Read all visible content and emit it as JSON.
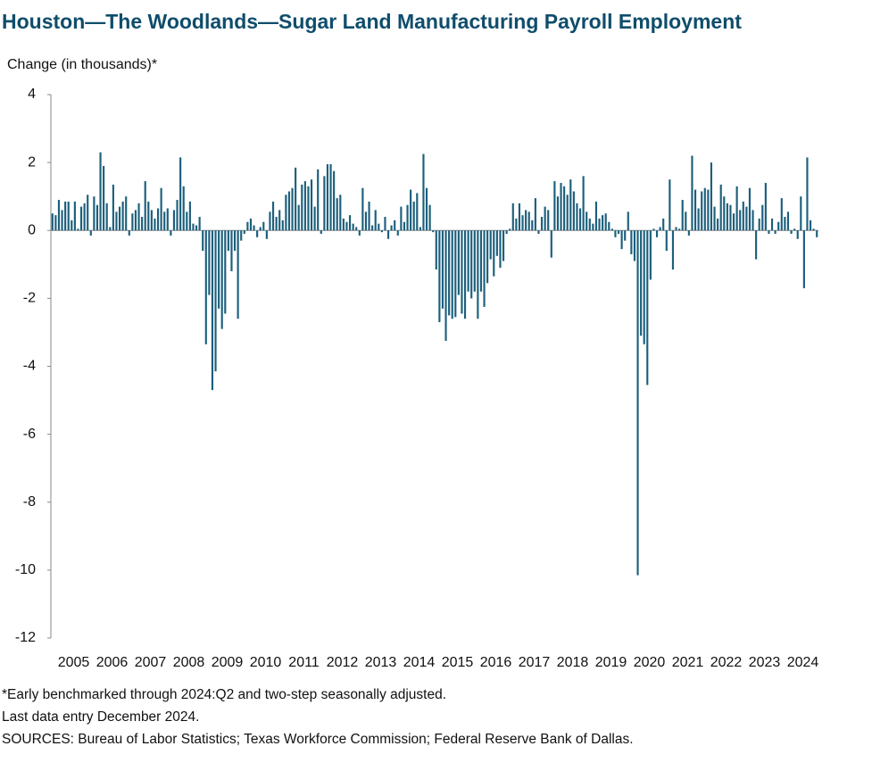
{
  "chart_data": {
    "type": "bar",
    "title": "Houston—The Woodlands—Sugar Land Manufacturing Payroll Employment",
    "y_axis_label": "Change (in thousands)*",
    "notes": [
      "*Early benchmarked through 2024:Q2  and two-step seasonally adjusted.",
      "Last data entry December 2024.",
      "SOURCES:  Bureau of Labor Statistics; Texas Workforce Commission;  Federal Reserve Bank of Dallas."
    ],
    "color": "#1c5f7c",
    "ylim": [
      -12,
      4
    ],
    "yticks": [
      4,
      2,
      0,
      -2,
      -4,
      -6,
      -8,
      -10,
      -12
    ],
    "grid": false,
    "categories": [
      null,
      null,
      null,
      null,
      null,
      null,
      "2005",
      null,
      null,
      null,
      null,
      null,
      null,
      null,
      null,
      null,
      null,
      null,
      "2006",
      null,
      null,
      null,
      null,
      null,
      null,
      null,
      null,
      null,
      null,
      null,
      "2007",
      null,
      null,
      null,
      null,
      null,
      null,
      null,
      null,
      null,
      null,
      null,
      "2008",
      null,
      null,
      null,
      null,
      null,
      null,
      null,
      null,
      null,
      null,
      null,
      "2009",
      null,
      null,
      null,
      null,
      null,
      null,
      null,
      null,
      null,
      null,
      null,
      "2010",
      null,
      null,
      null,
      null,
      null,
      null,
      null,
      null,
      null,
      null,
      null,
      "2011",
      null,
      null,
      null,
      null,
      null,
      null,
      null,
      null,
      null,
      null,
      null,
      "2012",
      null,
      null,
      null,
      null,
      null,
      null,
      null,
      null,
      null,
      null,
      null,
      "2013",
      null,
      null,
      null,
      null,
      null,
      null,
      null,
      null,
      null,
      null,
      null,
      "2014",
      null,
      null,
      null,
      null,
      null,
      null,
      null,
      null,
      null,
      null,
      null,
      "2015",
      null,
      null,
      null,
      null,
      null,
      null,
      null,
      null,
      null,
      null,
      null,
      "2016",
      null,
      null,
      null,
      null,
      null,
      null,
      null,
      null,
      null,
      null,
      null,
      "2017",
      null,
      null,
      null,
      null,
      null,
      null,
      null,
      null,
      null,
      null,
      null,
      "2018",
      null,
      null,
      null,
      null,
      null,
      null,
      null,
      null,
      null,
      null,
      null,
      "2019",
      null,
      null,
      null,
      null,
      null,
      null,
      null,
      null,
      null,
      null,
      null,
      "2020",
      null,
      null,
      null,
      null,
      null,
      null,
      null,
      null,
      null,
      null,
      null,
      "2021",
      null,
      null,
      null,
      null,
      null,
      null,
      null,
      null,
      null,
      null,
      null,
      "2022",
      null,
      null,
      null,
      null,
      null,
      null,
      null,
      null,
      null,
      null,
      null,
      "2023",
      null,
      null,
      null,
      null,
      null,
      null,
      null,
      null,
      null,
      null,
      null,
      "2024",
      null,
      null,
      null,
      null,
      null
    ],
    "values": [
      0.5,
      0.45,
      0.9,
      0.6,
      0.85,
      0.85,
      0.3,
      0.85,
      0.05,
      0.7,
      0.8,
      1.05,
      -0.15,
      1.0,
      0.75,
      2.3,
      1.9,
      0.8,
      0.1,
      1.35,
      0.55,
      0.7,
      0.85,
      1.0,
      -0.15,
      0.5,
      0.6,
      0.8,
      0.4,
      1.45,
      0.85,
      0.6,
      0.35,
      0.65,
      1.25,
      0.55,
      0.65,
      -0.15,
      0.6,
      0.9,
      2.15,
      1.3,
      0.55,
      0.85,
      0.2,
      0.15,
      0.4,
      -0.6,
      -3.35,
      -1.9,
      -4.7,
      -4.15,
      -2.3,
      -2.9,
      -2.45,
      -0.6,
      -1.2,
      -0.6,
      -2.6,
      -0.3,
      -0.1,
      0.25,
      0.35,
      0.15,
      -0.2,
      0.1,
      0.25,
      -0.25,
      0.55,
      0.85,
      0.4,
      0.6,
      0.3,
      1.05,
      1.15,
      1.25,
      1.85,
      0.75,
      1.35,
      1.45,
      1.3,
      1.5,
      0.7,
      1.8,
      -0.1,
      1.6,
      1.95,
      1.95,
      1.75,
      0.95,
      1.05,
      0.35,
      0.25,
      0.45,
      0.2,
      0.1,
      -0.15,
      1.25,
      0.55,
      0.85,
      0.15,
      0.6,
      0.2,
      -0.05,
      0.4,
      -0.25,
      0.15,
      0.3,
      -0.15,
      0.7,
      0.25,
      0.75,
      1.2,
      0.85,
      1.1,
      0.1,
      2.25,
      1.25,
      0.75,
      -0.05,
      -1.15,
      -2.7,
      -2.3,
      -3.25,
      -2.5,
      -2.6,
      -2.55,
      -1.9,
      -2.45,
      -2.6,
      -1.8,
      -2.0,
      -1.8,
      -2.6,
      -1.8,
      -2.25,
      -1.55,
      -0.85,
      -1.35,
      -0.75,
      -1.1,
      -0.9,
      -0.1,
      0.05,
      0.8,
      0.35,
      0.8,
      0.45,
      0.6,
      0.55,
      0.3,
      0.95,
      -0.1,
      0.4,
      0.7,
      0.6,
      -0.8,
      1.45,
      1.0,
      1.4,
      1.3,
      1.05,
      1.5,
      1.15,
      0.8,
      0.65,
      1.6,
      0.55,
      0.35,
      0.2,
      0.85,
      0.35,
      0.45,
      0.5,
      0.25,
      0.05,
      -0.2,
      -0.1,
      -0.55,
      -0.3,
      0.55,
      -0.7,
      -0.9,
      -10.15,
      -3.1,
      -3.35,
      -4.55,
      -1.45,
      0.05,
      -0.2,
      0.1,
      0.35,
      -0.6,
      1.5,
      -1.15,
      0.1,
      0.05,
      0.9,
      0.55,
      -0.15,
      2.2,
      1.2,
      0.65,
      1.15,
      1.25,
      1.2,
      2.0,
      0.7,
      0.35,
      1.35,
      1.0,
      0.8,
      0.75,
      0.5,
      1.3,
      0.6,
      0.85,
      0.7,
      1.25,
      0.6,
      -0.85,
      0.35,
      0.75,
      1.4,
      -0.1,
      0.35,
      -0.1,
      0.25,
      0.95,
      0.4,
      0.55,
      -0.1,
      0.05,
      -0.25,
      1.0,
      -1.7,
      2.15,
      0.3,
      0.05,
      -0.2
    ]
  }
}
